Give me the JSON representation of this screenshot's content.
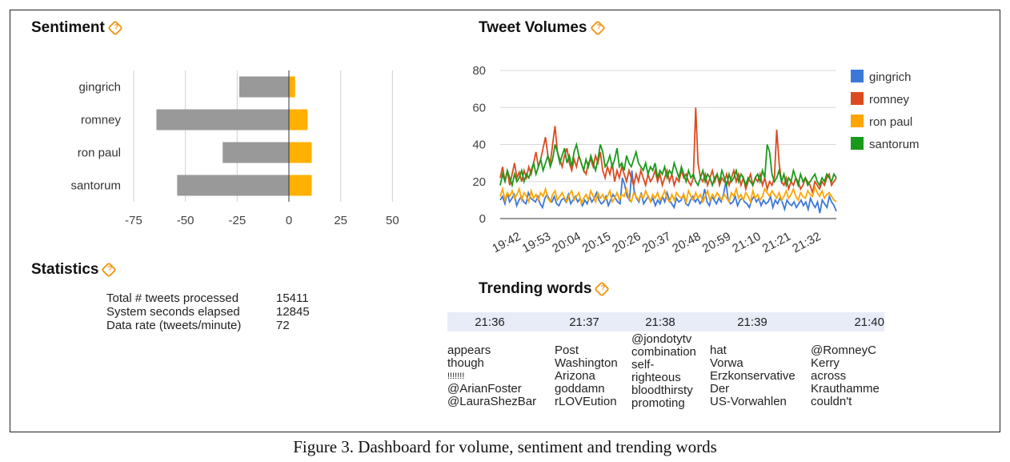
{
  "colors": {
    "negative_bar": "#999999",
    "positive_bar": "#ffb000",
    "gingrich": "#3c78d8",
    "romney": "#dc4b20",
    "ron_paul": "#ffa500",
    "santorum": "#1a9a1a",
    "trend_header": "#e8ecf7",
    "help_icon": "#f29a1b"
  },
  "panels": {
    "sentiment_title": "Sentiment",
    "volume_title": "Tweet Volumes",
    "statistics_title": "Statistics",
    "trending_title": "Trending words",
    "help_icon": "help-diamond-icon"
  },
  "statistics": [
    {
      "label": "Total # tweets processed",
      "value": "15411"
    },
    {
      "label": "System seconds elapsed",
      "value": "12845"
    },
    {
      "label": "Data rate (tweets/minute)",
      "value": "72"
    }
  ],
  "trending": {
    "columns": [
      {
        "time": "21:36",
        "words": [
          "appears",
          "though",
          "!!!!!!!",
          "@ArianFoster",
          "@LauraShezBar"
        ]
      },
      {
        "time": "21:37",
        "words": [
          "Post",
          "Washington",
          "Arizona",
          "goddamn",
          "rLOVEution"
        ]
      },
      {
        "time": "21:38",
        "words": [
          "@jondotytv",
          "combination",
          "self-",
          "righteous",
          "bloodthirsty",
          "promoting"
        ]
      },
      {
        "time": "21:39",
        "words": [
          "hat",
          "Vorwa",
          "Erzkonservative",
          "Der",
          "US-Vorwahlen"
        ]
      },
      {
        "time": "21:40",
        "words": [
          "@RomneyC",
          "Kerry",
          "across",
          "Krauthamme",
          "couldn't"
        ]
      }
    ]
  },
  "caption": "Figure 3. Dashboard for volume, sentiment and trending words",
  "chart_data": [
    {
      "type": "bar",
      "orientation": "horizontal",
      "stacked": true,
      "categories": [
        "gingrich",
        "romney",
        "ron paul",
        "santorum"
      ],
      "series": [
        {
          "values": [
            -24,
            -64,
            -32,
            -54
          ]
        },
        {
          "values": [
            3,
            9,
            11,
            11
          ]
        }
      ],
      "xlim": [
        -75,
        75
      ],
      "xticks": [
        -75,
        -50,
        -25,
        0,
        25,
        50
      ],
      "grid": true
    },
    {
      "type": "line",
      "x_tick_labels": [
        "19:42",
        "19:53",
        "20:04",
        "20:15",
        "20:26",
        "20:37",
        "20:48",
        "20:59",
        "21:10",
        "21:21",
        "21:32"
      ],
      "ylim": [
        0,
        80
      ],
      "yticks": [
        0,
        20,
        40,
        60,
        80
      ],
      "grid": true,
      "legend": "right",
      "series": [
        {
          "name": "gingrich",
          "values": [
            10,
            12,
            8,
            14,
            9,
            11,
            13,
            7,
            10,
            12,
            9,
            8,
            14,
            11,
            10,
            9,
            12,
            8,
            6,
            11,
            13,
            10,
            9,
            12,
            8,
            7,
            10,
            11,
            9,
            13,
            8,
            10,
            12,
            9,
            11,
            7,
            10,
            8,
            12,
            9,
            11,
            14,
            10,
            8,
            9,
            12,
            7,
            10,
            13,
            11,
            9,
            8,
            22,
            18,
            12,
            10,
            26,
            15,
            11,
            9,
            14,
            8,
            10,
            12,
            9,
            11,
            7,
            10,
            8,
            12,
            9,
            14,
            10,
            8,
            6,
            11,
            9,
            10,
            13,
            8,
            7,
            10,
            12,
            9,
            11,
            8,
            10,
            16,
            9,
            7,
            12,
            10,
            8,
            11,
            9,
            13,
            20,
            10,
            8,
            9,
            12,
            7,
            10,
            11,
            9,
            8,
            6,
            10,
            12,
            9,
            11,
            7,
            10,
            8,
            9,
            12,
            6,
            10,
            8,
            11,
            9,
            5,
            10,
            8,
            7,
            9,
            6,
            8,
            10,
            7,
            9,
            5,
            11,
            8,
            6,
            9,
            3,
            10,
            8,
            6,
            12,
            9,
            7,
            4
          ]
        },
        {
          "name": "romney",
          "values": [
            22,
            28,
            20,
            26,
            18,
            24,
            30,
            22,
            25,
            20,
            26,
            22,
            28,
            24,
            30,
            36,
            28,
            32,
            38,
            44,
            34,
            30,
            40,
            50,
            36,
            32,
            28,
            34,
            38,
            30,
            26,
            32,
            28,
            34,
            30,
            26,
            24,
            30,
            32,
            28,
            34,
            30,
            36,
            26,
            22,
            28,
            24,
            30,
            20,
            26,
            22,
            28,
            24,
            20,
            26,
            22,
            18,
            24,
            20,
            26,
            22,
            18,
            24,
            20,
            22,
            26,
            20,
            24,
            18,
            22,
            26,
            20,
            24,
            18,
            22,
            20,
            26,
            22,
            24,
            20,
            18,
            22,
            60,
            30,
            22,
            20,
            24,
            18,
            22,
            26,
            20,
            24,
            18,
            22,
            20,
            24,
            18,
            22,
            26,
            20,
            24,
            18,
            22,
            16,
            20,
            24,
            18,
            22,
            20,
            24,
            18,
            22,
            16,
            20,
            18,
            22,
            48,
            30,
            20,
            18,
            22,
            16,
            20,
            18,
            22,
            20,
            16,
            18,
            22,
            20,
            18,
            14,
            20,
            18,
            16,
            20,
            18,
            22,
            24,
            18,
            20,
            22
          ]
        },
        {
          "name": "ron paul",
          "values": [
            12,
            16,
            10,
            14,
            12,
            15,
            11,
            13,
            16,
            10,
            14,
            12,
            9,
            15,
            11,
            13,
            10,
            14,
            12,
            16,
            11,
            9,
            13,
            15,
            10,
            12,
            14,
            11,
            9,
            13,
            15,
            10,
            12,
            14,
            8,
            11,
            13,
            10,
            15,
            12,
            9,
            14,
            11,
            13,
            10,
            12,
            15,
            9,
            11,
            14,
            10,
            13,
            12,
            16,
            11,
            9,
            14,
            12,
            10,
            13,
            11,
            15,
            12,
            9,
            13,
            11,
            14,
            10,
            12,
            15,
            11,
            9,
            13,
            10,
            14,
            12,
            11,
            13,
            9,
            15,
            12,
            10,
            14,
            11,
            13,
            9,
            12,
            15,
            10,
            13,
            11,
            14,
            12,
            10,
            13,
            11,
            9,
            14,
            12,
            16,
            11,
            13,
            10,
            14,
            12,
            9,
            15,
            11,
            13,
            10,
            12,
            16,
            14,
            12,
            15,
            13,
            11,
            14,
            10,
            12,
            15,
            11,
            13,
            16,
            12,
            10,
            14,
            12,
            11,
            15,
            13,
            12,
            17,
            14,
            12,
            15,
            11,
            13,
            14,
            12,
            10,
            9
          ]
        },
        {
          "name": "santorum",
          "values": [
            18,
            24,
            20,
            26,
            22,
            18,
            24,
            20,
            22,
            26,
            20,
            24,
            22,
            26,
            30,
            24,
            28,
            32,
            26,
            30,
            34,
            28,
            32,
            40,
            36,
            30,
            34,
            38,
            30,
            34,
            28,
            36,
            40,
            34,
            30,
            26,
            32,
            28,
            34,
            30,
            26,
            32,
            40,
            36,
            28,
            30,
            34,
            28,
            32,
            38,
            28,
            30,
            26,
            34,
            30,
            28,
            32,
            36,
            30,
            28,
            26,
            30,
            24,
            28,
            26,
            30,
            22,
            26,
            24,
            28,
            22,
            26,
            24,
            30,
            26,
            22,
            28,
            24,
            20,
            26,
            22,
            24,
            20,
            18,
            22,
            26,
            20,
            24,
            22,
            18,
            22,
            24,
            20,
            26,
            22,
            18,
            24,
            20,
            22,
            26,
            20,
            24,
            22,
            18,
            22,
            20,
            18,
            22,
            24,
            20,
            26,
            22,
            40,
            36,
            24,
            20,
            22,
            26,
            20,
            24,
            18,
            22,
            20,
            26,
            22,
            18,
            24,
            20,
            22,
            18,
            20,
            22,
            24,
            20,
            18,
            22,
            20,
            24,
            22,
            20,
            24,
            22
          ]
        }
      ]
    }
  ]
}
